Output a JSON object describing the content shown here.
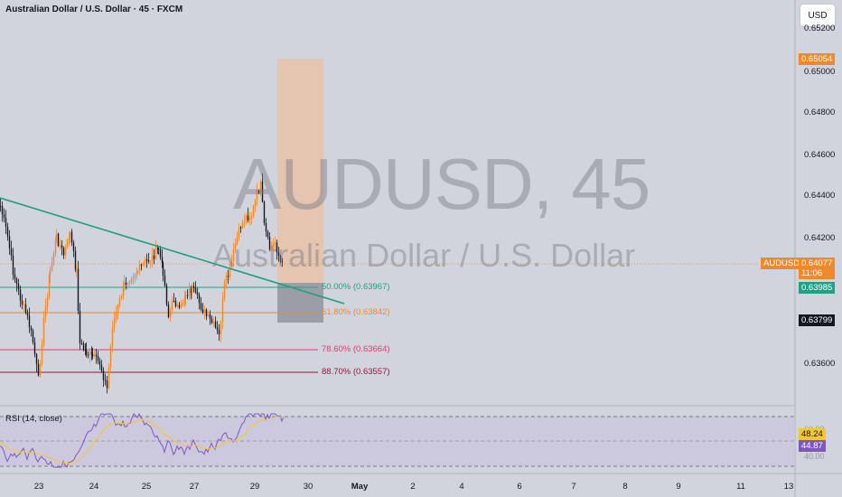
{
  "header": {
    "title": "Australian Dollar / U.S. Dollar · 45 · FXCM",
    "currency_button": "USD"
  },
  "watermark": {
    "symbol": "AUDUSD, 45",
    "description": "Australian Dollar / U.S. Dollar"
  },
  "price_axis": {
    "ticks": [
      "0.65200",
      "0.65000",
      "0.64800",
      "0.64600",
      "0.64400",
      "0.64200",
      "0.63600"
    ],
    "tags": {
      "target": "0.65054",
      "symbol_name": "AUDUSD",
      "last_price": "0.64077",
      "countdown": "11:06",
      "entry": "0.63985",
      "stop": "0.63799"
    }
  },
  "fib_levels": [
    {
      "label": "50.00% (0.63967)",
      "price": 0.63967,
      "color": "#22a085"
    },
    {
      "label": "61.80% (0.63842)",
      "price": 0.63842,
      "color": "#f0882c"
    },
    {
      "label": "78.60% (0.63664)",
      "price": 0.63664,
      "color": "#e23a6a"
    },
    {
      "label": "88.70% (0.63557)",
      "price": 0.63557,
      "color": "#8e1a3a"
    }
  ],
  "time_axis": {
    "labels": [
      "23",
      "24",
      "25",
      "27",
      "29",
      "30",
      "May",
      "2",
      "4",
      "6",
      "7",
      "8",
      "9",
      "11",
      "13"
    ]
  },
  "rsi": {
    "label": "RSI (14, close)",
    "ticks": [
      "60.00",
      "40.00"
    ],
    "value_rsi": "44.87",
    "value_ma": "48.24"
  },
  "colors": {
    "background": "#d1d4dc",
    "candle_up": "#f0882c",
    "candle_down": "#131722",
    "trendline": "#1e9e82",
    "target_zone": "#e8c2a8",
    "stop_zone": "#9598a1",
    "rsi_line": "#7e57c2",
    "rsi_ma": "#f7c62f",
    "rsi_bg": "#cbc6de"
  }
}
